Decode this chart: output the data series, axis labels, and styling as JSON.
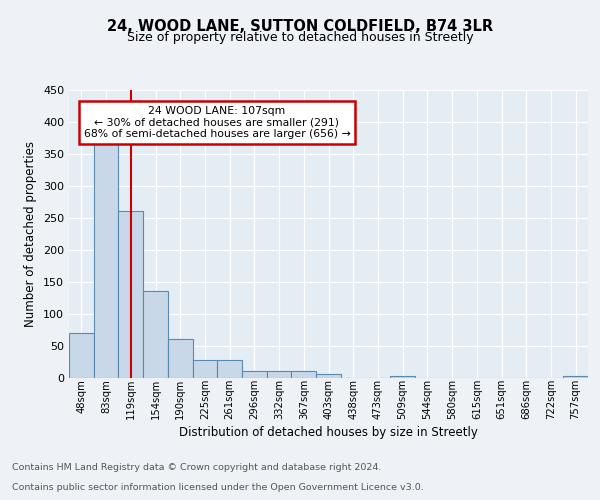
{
  "title1": "24, WOOD LANE, SUTTON COLDFIELD, B74 3LR",
  "title2": "Size of property relative to detached houses in Streetly",
  "xlabel": "Distribution of detached houses by size in Streetly",
  "ylabel": "Number of detached properties",
  "bar_labels": [
    "48sqm",
    "83sqm",
    "119sqm",
    "154sqm",
    "190sqm",
    "225sqm",
    "261sqm",
    "296sqm",
    "332sqm",
    "367sqm",
    "403sqm",
    "438sqm",
    "473sqm",
    "509sqm",
    "544sqm",
    "580sqm",
    "615sqm",
    "651sqm",
    "686sqm",
    "722sqm",
    "757sqm"
  ],
  "bar_values": [
    70,
    375,
    260,
    135,
    60,
    28,
    28,
    10,
    10,
    10,
    5,
    0,
    0,
    3,
    0,
    0,
    0,
    0,
    0,
    0,
    3
  ],
  "bar_color": "#c8d8e8",
  "bar_edge_color": "#5a8ab0",
  "red_line_index": 2,
  "red_line_color": "#cc0000",
  "annotation_line1": "24 WOOD LANE: 107sqm",
  "annotation_line2": "← 30% of detached houses are smaller (291)",
  "annotation_line3": "68% of semi-detached houses are larger (656) →",
  "annotation_box_color": "#cc0000",
  "annotation_box_bg": "#ffffff",
  "ylim": [
    0,
    450
  ],
  "yticks": [
    0,
    50,
    100,
    150,
    200,
    250,
    300,
    350,
    400,
    450
  ],
  "footnote1": "Contains HM Land Registry data © Crown copyright and database right 2024.",
  "footnote2": "Contains public sector information licensed under the Open Government Licence v3.0.",
  "bg_color": "#eef2f6",
  "plot_bg_color": "#e4ecf4"
}
